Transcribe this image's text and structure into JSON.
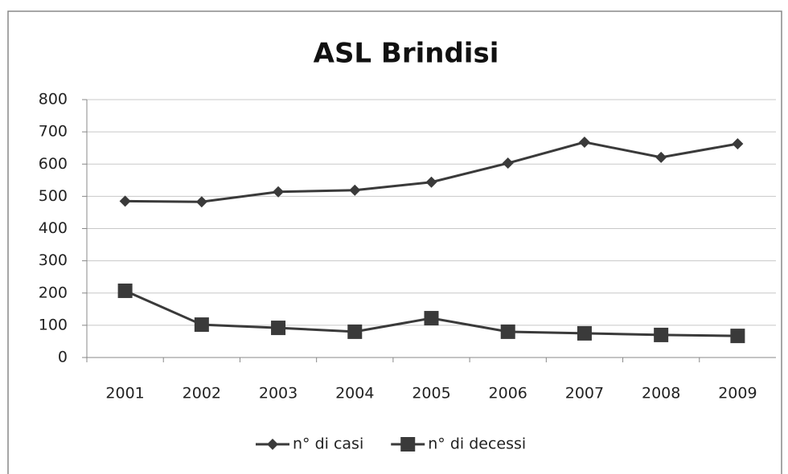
{
  "chart_data": {
    "type": "line",
    "title": "ASL Brindisi",
    "categories": [
      "2001",
      "2002",
      "2003",
      "2004",
      "2005",
      "2006",
      "2007",
      "2008",
      "2009"
    ],
    "series": [
      {
        "name": "n° di casi",
        "color": "#3a3a3a",
        "marker": "diamond",
        "values": [
          485,
          483,
          514,
          519,
          544,
          603,
          668,
          621,
          663
        ]
      },
      {
        "name": "n° di decessi",
        "color": "#3a3a3a",
        "marker": "square",
        "values": [
          207,
          102,
          92,
          80,
          122,
          80,
          75,
          70,
          67
        ]
      }
    ],
    "ylim": [
      0,
      800
    ],
    "yticks": [
      0,
      100,
      200,
      300,
      400,
      500,
      600,
      700,
      800
    ],
    "grid": true,
    "legend": "bottom"
  }
}
